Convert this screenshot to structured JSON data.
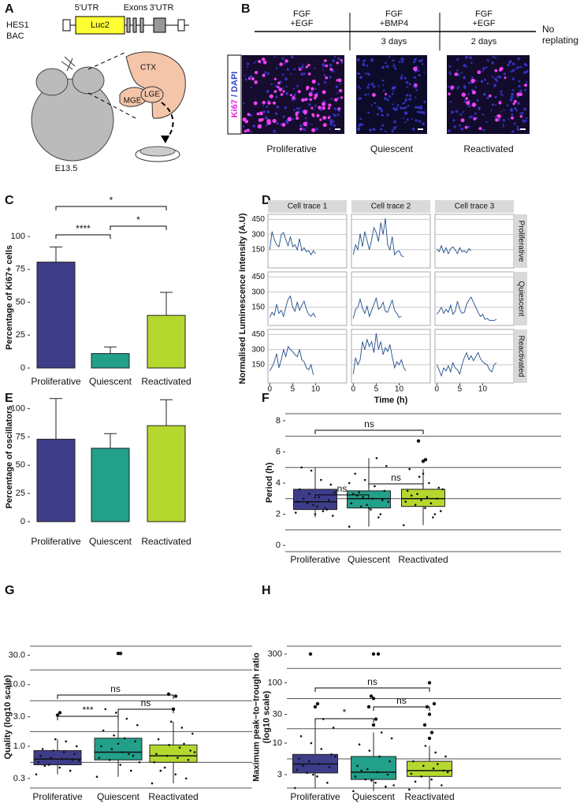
{
  "panel_a": {
    "label": "A",
    "construct": {
      "name_lines": [
        "HES1",
        "BAC"
      ],
      "utr5": "5'UTR",
      "reporter": "Luc2",
      "exons": "Exons",
      "utr3": "3'UTR"
    },
    "brain": {
      "ctx": "CTX",
      "lge": "LGE",
      "mge": "MGE"
    },
    "age": "E13.5"
  },
  "panel_b": {
    "label": "B",
    "timeline": [
      {
        "lines": [
          "FGF",
          "+EGF"
        ]
      },
      {
        "lines": [
          "FGF",
          "+BMP4"
        ],
        "duration": "3 days"
      },
      {
        "lines": [
          "FGF",
          "+EGF"
        ],
        "duration": "2 days"
      }
    ],
    "no_replating": [
      "No",
      "replating"
    ],
    "stain": [
      "Ki67",
      " / DAPI"
    ],
    "conditions": [
      "Proliferative",
      "Quiescent",
      "Reactivated"
    ]
  },
  "chart_data": [
    {
      "panel": "C",
      "type": "bar",
      "categories": [
        "Proliferative",
        "Quiescent",
        "Reactivated"
      ],
      "values": [
        80.5,
        11,
        40
      ],
      "errors": [
        11.5,
        5,
        17.5
      ],
      "colors": [
        "#3d3d8a",
        "#22a08a",
        "#b5d82e"
      ],
      "ylabel": "Percentage of Ki67+ cells",
      "ylim": [
        -4.8,
        112
      ],
      "yticks": [
        0,
        25,
        50,
        75,
        100
      ],
      "brackets": [
        {
          "pair": [
            0,
            1
          ],
          "label": "****"
        },
        {
          "pair": [
            1,
            2
          ],
          "label": "*"
        },
        {
          "pair": [
            0,
            2
          ],
          "label": "*"
        }
      ]
    },
    {
      "panel": "D",
      "type": "line-grid",
      "columns": [
        "Cell trace 1",
        "Cell trace 2",
        "Cell trace 3"
      ],
      "rows": [
        "Proliferative",
        "Quiescent",
        "Reactivated"
      ],
      "ylabel": "Normalised Luminescence Intensity (A.U)",
      "xlabel": "Time (h)",
      "color": "#1f4e8c",
      "xlim": [
        -0.4,
        16.8
      ],
      "xticks": [
        0,
        5,
        10
      ],
      "ylim": [
        -30,
        500
      ],
      "yticks": [
        150,
        300,
        450
      ],
      "grid": true,
      "x": [
        0,
        0.5,
        1,
        1.5,
        2,
        2.5,
        3,
        3.5,
        4,
        4.5,
        5,
        5.5,
        6,
        6.5,
        7,
        7.5,
        8,
        8.5,
        9,
        9.5,
        10,
        10.5,
        11,
        11.5,
        12,
        12.5,
        13
      ],
      "traces": [
        [
          [
            150,
            330,
            250,
            200,
            180,
            300,
            320,
            250,
            190,
            280,
            180,
            200,
            150,
            260,
            140,
            170,
            130,
            140,
            100,
            140,
            110,
            null,
            null,
            null,
            null,
            null,
            null
          ],
          [
            100,
            200,
            150,
            310,
            180,
            330,
            240,
            150,
            250,
            370,
            320,
            230,
            420,
            300,
            460,
            200,
            150,
            280,
            100,
            130,
            140,
            90,
            80,
            null,
            null,
            null,
            null
          ],
          [
            160,
            130,
            190,
            120,
            170,
            110,
            160,
            180,
            150,
            110,
            170,
            130,
            140,
            120,
            160,
            140,
            null,
            null,
            null,
            null,
            null,
            null,
            null,
            null,
            null,
            null,
            null
          ]
        ],
        [
          [
            50,
            100,
            70,
            180,
            90,
            120,
            60,
            150,
            230,
            260,
            150,
            110,
            200,
            120,
            170,
            210,
            130,
            80,
            60,
            90,
            50,
            null,
            null,
            null,
            null,
            null,
            null
          ],
          [
            40,
            130,
            150,
            230,
            140,
            90,
            160,
            60,
            120,
            180,
            240,
            130,
            150,
            200,
            110,
            100,
            160,
            220,
            120,
            90,
            50,
            60,
            null,
            null,
            null,
            null,
            null
          ],
          [
            80,
            110,
            150,
            90,
            130,
            100,
            170,
            80,
            110,
            210,
            130,
            90,
            100,
            180,
            220,
            250,
            200,
            150,
            100,
            60,
            80,
            30,
            40,
            20,
            20,
            20,
            30
          ]
        ],
        [
          [
            90,
            130,
            180,
            260,
            120,
            200,
            300,
            230,
            330,
            300,
            280,
            250,
            230,
            300,
            200,
            180,
            120,
            100,
            150,
            50,
            null,
            null,
            null,
            null,
            null,
            null,
            null
          ],
          [
            60,
            220,
            150,
            200,
            380,
            300,
            400,
            330,
            380,
            270,
            460,
            300,
            380,
            250,
            320,
            280,
            350,
            230,
            120,
            180,
            150,
            200,
            120,
            90,
            null,
            null,
            null
          ],
          [
            150,
            100,
            40,
            120,
            90,
            140,
            80,
            170,
            120,
            100,
            60,
            150,
            220,
            270,
            200,
            240,
            190,
            230,
            270,
            210,
            180,
            160,
            150,
            100,
            80,
            150,
            170
          ]
        ]
      ]
    },
    {
      "panel": "E",
      "type": "bar",
      "categories": [
        "Proliferative",
        "Quiescent",
        "Reactivated"
      ],
      "values": [
        73,
        65,
        85
      ],
      "errors": [
        36,
        13,
        23
      ],
      "colors": [
        "#3d3d8a",
        "#22a08a",
        "#b5d82e"
      ],
      "ylabel": "Percentage of oscillators",
      "ylim": [
        -5.6,
        120
      ],
      "yticks": [
        0,
        25,
        50,
        75,
        100
      ]
    },
    {
      "panel": "F",
      "type": "box",
      "categories": [
        "Proliferative",
        "Quiescent",
        "Reactivated"
      ],
      "colors": [
        "#3d3d8a",
        "#22a08a",
        "#b5d82e"
      ],
      "ylabel": "Period (h)",
      "ylim": [
        -0.4,
        8.45
      ],
      "yticks": [
        0,
        2,
        4,
        6,
        8
      ],
      "minor_grid": [
        1,
        3,
        5,
        7
      ],
      "boxes": [
        {
          "whislo": 1.8,
          "q1": 2.3,
          "med": 2.8,
          "q3": 3.6,
          "whishi": 5.0,
          "fliers": []
        },
        {
          "whislo": 1.2,
          "q1": 2.4,
          "med": 3.0,
          "q3": 3.5,
          "whishi": 5.6,
          "fliers": []
        },
        {
          "whislo": 1.3,
          "q1": 2.5,
          "med": 3.0,
          "q3": 3.6,
          "whishi": 4.9,
          "fliers": [
            5.4,
            5.5,
            6.7
          ]
        }
      ],
      "points": [
        [
          2.1,
          2.3,
          2.5,
          2.7,
          2.8,
          2.9,
          3.1,
          3.3,
          3.6,
          3.9,
          4.2,
          4.8,
          5.0,
          1.9,
          2.2,
          2.6,
          3.0,
          3.4,
          2.4,
          2.0
        ],
        [
          1.2,
          2.0,
          2.3,
          2.5,
          2.7,
          2.9,
          3.0,
          3.1,
          3.3,
          3.5,
          3.8,
          4.2,
          4.6,
          5.1,
          5.6,
          2.6,
          3.2,
          2.8,
          1.8,
          2.4,
          3.4,
          4.0
        ],
        [
          1.3,
          2.0,
          2.4,
          2.6,
          2.8,
          3.0,
          3.1,
          3.3,
          3.5,
          3.7,
          4.0,
          4.4,
          4.9,
          2.2,
          2.7,
          2.9,
          3.2,
          3.6,
          1.8,
          4.6
        ]
      ],
      "brackets": [
        {
          "pair": [
            0,
            2
          ],
          "label": "ns"
        },
        {
          "pair": [
            0,
            1
          ],
          "label": "ns"
        },
        {
          "pair": [
            1,
            2
          ],
          "label": "ns"
        }
      ]
    },
    {
      "panel": "G",
      "type": "box",
      "log_scale": true,
      "categories": [
        "Proliferative",
        "Quiescent",
        "Reactivated"
      ],
      "colors": [
        "#3d3d8a",
        "#22a08a",
        "#b5d82e"
      ],
      "ylabel": "Quality (log10 scale)",
      "ylim": [
        0.21,
        42
      ],
      "yticks": [
        0.3,
        {
          "value": 1,
          "label": "1.0"
        },
        {
          "value": 3,
          "label": "3.0"
        },
        {
          "value": 10,
          "label": "10.0"
        },
        {
          "value": 30,
          "label": "30.0"
        }
      ],
      "minor_grid": [
        0.548,
        1.73,
        5.48,
        17.3
      ],
      "boxes": [
        {
          "whislo": 0.35,
          "q1": 0.5,
          "med": 0.62,
          "q3": 0.85,
          "whishi": 1.3,
          "fliers": [
            3.2,
            3.5
          ]
        },
        {
          "whislo": 0.32,
          "q1": 0.6,
          "med": 0.8,
          "q3": 1.35,
          "whishi": 4.0,
          "fliers": [
            32,
            32
          ]
        },
        {
          "whislo": 0.25,
          "q1": 0.55,
          "med": 0.7,
          "q3": 1.05,
          "whishi": 2.5,
          "fliers": [
            4.0,
            6.5,
            7.0
          ]
        }
      ],
      "points": [
        [
          0.35,
          0.4,
          0.45,
          0.5,
          0.55,
          0.6,
          0.62,
          0.65,
          0.7,
          0.75,
          0.8,
          0.85,
          0.9,
          1.0,
          1.2,
          1.3,
          0.48,
          0.58
        ],
        [
          0.32,
          0.4,
          0.5,
          0.6,
          0.65,
          0.7,
          0.8,
          0.9,
          1.0,
          1.2,
          1.35,
          1.5,
          1.8,
          2.2,
          2.8,
          3.5,
          4.0,
          0.55,
          0.75,
          1.1
        ],
        [
          0.25,
          0.3,
          0.35,
          0.45,
          0.55,
          0.6,
          0.65,
          0.7,
          0.75,
          0.85,
          0.95,
          1.05,
          1.3,
          1.6,
          2.0,
          2.5,
          0.4,
          0.8,
          1.1
        ]
      ],
      "brackets": [
        {
          "pair": [
            0,
            2
          ],
          "label": "ns"
        },
        {
          "pair": [
            0,
            1
          ],
          "label": "***"
        },
        {
          "pair": [
            1,
            2
          ],
          "label": "ns"
        }
      ]
    },
    {
      "panel": "H",
      "type": "box",
      "log_scale": true,
      "categories": [
        "Proliferative",
        "Quiescent",
        "Reactivated"
      ],
      "colors": [
        "#3d3d8a",
        "#22a08a",
        "#b5d82e"
      ],
      "ylabel": [
        "Maximum peak−to−trough ratio",
        "(log10 scale)"
      ],
      "ylim": [
        1.8,
        405
      ],
      "yticks": [
        3,
        10,
        30,
        100,
        300
      ],
      "minor_grid": [
        5.48,
        17.3,
        54.8,
        173.2
      ],
      "boxes": [
        {
          "whislo": 1.8,
          "q1": 3.2,
          "med": 4.5,
          "q3": 6.5,
          "whishi": 25,
          "fliers": [
            40,
            45,
            300
          ]
        },
        {
          "whislo": 1.6,
          "q1": 2.5,
          "med": 3.3,
          "q3": 6.0,
          "whishi": 15,
          "fliers": [
            20,
            25,
            40,
            55,
            60,
            300,
            300
          ]
        },
        {
          "whislo": 1.7,
          "q1": 2.8,
          "med": 3.5,
          "q3": 5.0,
          "whishi": 9,
          "fliers": [
            12,
            15,
            20,
            30,
            40,
            45,
            100
          ]
        }
      ],
      "points": [
        [
          1.8,
          2.2,
          2.8,
          3.2,
          3.6,
          4.0,
          4.5,
          5.0,
          5.5,
          6.5,
          8,
          10,
          13,
          18,
          25,
          3.0,
          4.2,
          6.0
        ],
        [
          1.6,
          1.9,
          2.2,
          2.5,
          2.8,
          3.0,
          3.3,
          3.7,
          4.2,
          5.0,
          6.0,
          7.5,
          9.5,
          12,
          15,
          2.4,
          3.5,
          2.0
        ],
        [
          1.7,
          2.0,
          2.5,
          2.8,
          3.1,
          3.5,
          3.8,
          4.2,
          5.0,
          6.0,
          7.0,
          9.0,
          2.3,
          3.3,
          4.5
        ]
      ],
      "brackets": [
        {
          "pair": [
            0,
            2
          ],
          "label": "ns"
        },
        {
          "pair": [
            0,
            1
          ],
          "label": "*"
        },
        {
          "pair": [
            1,
            2
          ],
          "label": "ns"
        }
      ]
    }
  ]
}
